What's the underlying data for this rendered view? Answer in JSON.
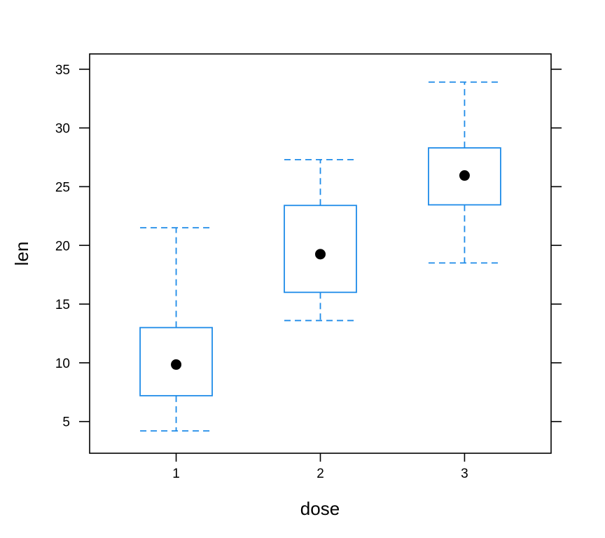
{
  "chart_data": {
    "type": "box",
    "xlabel": "dose",
    "ylabel": "len",
    "categories": [
      "1",
      "2",
      "3"
    ],
    "ylim": [
      2.3,
      36.3
    ],
    "yticks": [
      5,
      10,
      15,
      20,
      25,
      30,
      35
    ],
    "boxes": [
      {
        "category": "1",
        "whisker_low": 4.2,
        "q1": 7.2,
        "median": 9.85,
        "q3": 13.0,
        "whisker_high": 21.5
      },
      {
        "category": "2",
        "whisker_low": 13.6,
        "q1": 16.0,
        "median": 19.25,
        "q3": 23.4,
        "whisker_high": 27.3
      },
      {
        "category": "3",
        "whisker_low": 18.5,
        "q1": 23.45,
        "median": 25.95,
        "q3": 28.3,
        "whisker_high": 33.9
      }
    ],
    "colors": {
      "box": "#1E8BE8",
      "median_dot": "#000000",
      "frame": "#000000"
    },
    "grid": false,
    "legend": "none"
  }
}
